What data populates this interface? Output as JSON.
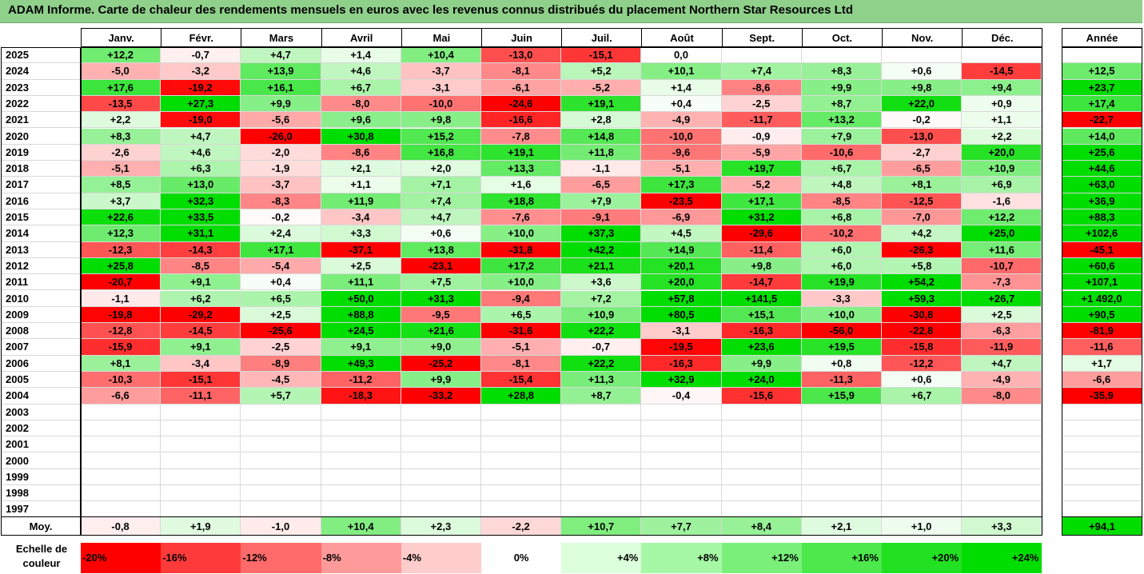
{
  "title": "ADAM Informe. Carte de chaleur des rendements mensuels en euros avec les revenus connus distribués du placement Northern Star Resources Ltd",
  "chart_data": {
    "type": "heatmap",
    "title": "ADAM Informe. Carte de chaleur des rendements mensuels en euros avec les revenus connus distribués du placement Northern Star Resources Ltd",
    "months": [
      "Janv.",
      "Févr.",
      "Mars",
      "Avril",
      "Mai",
      "Juin",
      "Juil.",
      "Août",
      "Sept.",
      "Oct.",
      "Nov.",
      "Déc."
    ],
    "annual_header": "Année",
    "rows": [
      {
        "year": "2025",
        "months": [
          "+12,2",
          "-0,7",
          "+4,7",
          "+1,4",
          "+10,4",
          "-13,0",
          "-15,1",
          "0,0",
          "",
          "",
          "",
          ""
        ],
        "annual": ""
      },
      {
        "year": "2024",
        "months": [
          "-5,0",
          "-3,2",
          "+13,9",
          "+4,6",
          "-3,7",
          "-8,1",
          "+5,2",
          "+10,1",
          "+7,4",
          "+8,3",
          "+0,6",
          "-14,5"
        ],
        "annual": "+12,5"
      },
      {
        "year": "2023",
        "months": [
          "+17,6",
          "-19,2",
          "+16,1",
          "+6,7",
          "-3,1",
          "-6,1",
          "-5,2",
          "+1,4",
          "-8,6",
          "+9,9",
          "+9,8",
          "+9,4"
        ],
        "annual": "+23,7"
      },
      {
        "year": "2022",
        "months": [
          "-13,5",
          "+27,3",
          "+9,9",
          "-8,0",
          "-10,0",
          "-24,6",
          "+19,1",
          "+0,4",
          "-2,5",
          "+8,7",
          "+22,0",
          "+0,9"
        ],
        "annual": "+17,4"
      },
      {
        "year": "2021",
        "months": [
          "+2,2",
          "-19,0",
          "-5,6",
          "+9,6",
          "+9,8",
          "-16,6",
          "+2,8",
          "-4,9",
          "-11,7",
          "+13,2",
          "-0,2",
          "+1,1"
        ],
        "annual": "-22,7"
      },
      {
        "year": "2020",
        "months": [
          "+8,3",
          "+4,7",
          "-26,0",
          "+30,8",
          "+15,2",
          "-7,8",
          "+14,8",
          "-10,0",
          "-0,9",
          "+7,9",
          "-13,0",
          "+2,2"
        ],
        "annual": "+14,0"
      },
      {
        "year": "2019",
        "months": [
          "-2,6",
          "+4,6",
          "-2,0",
          "-8,6",
          "+16,8",
          "+19,1",
          "+11,8",
          "-9,6",
          "-5,9",
          "-10,6",
          "-2,7",
          "+20,0"
        ],
        "annual": "+25,6"
      },
      {
        "year": "2018",
        "months": [
          "-5,1",
          "+6,3",
          "-1,9",
          "+2,1",
          "+2,0",
          "+13,3",
          "-1,1",
          "-5,1",
          "+19,7",
          "+6,7",
          "-6,5",
          "+10,9"
        ],
        "annual": "+44,6"
      },
      {
        "year": "2017",
        "months": [
          "+8,5",
          "+13,0",
          "-3,7",
          "+1,1",
          "+7,1",
          "+1,6",
          "-6,5",
          "+17,3",
          "-5,2",
          "+4,8",
          "+8,1",
          "+6,9"
        ],
        "annual": "+63,0"
      },
      {
        "year": "2016",
        "months": [
          "+3,7",
          "+32,3",
          "-8,3",
          "+11,9",
          "+7,4",
          "+18,8",
          "+7,9",
          "-23,5",
          "+17,1",
          "-8,5",
          "-12,5",
          "-1,6"
        ],
        "annual": "+36,9"
      },
      {
        "year": "2015",
        "months": [
          "+22,6",
          "+33,5",
          "-0,2",
          "-3,4",
          "+4,7",
          "-7,6",
          "-9,1",
          "-6,9",
          "+31,2",
          "+6,8",
          "-7,0",
          "+12,2"
        ],
        "annual": "+88,3"
      },
      {
        "year": "2014",
        "months": [
          "+12,3",
          "+31,1",
          "+2,4",
          "+3,3",
          "+0,6",
          "+10,0",
          "+37,3",
          "+4,5",
          "-29,6",
          "-10,2",
          "+4,2",
          "+25,0"
        ],
        "annual": "+102,6"
      },
      {
        "year": "2013",
        "months": [
          "-12,3",
          "-14,3",
          "+17,1",
          "-37,1",
          "+13,8",
          "-31,8",
          "+42,2",
          "+14,9",
          "-11,4",
          "+6,0",
          "-26,3",
          "+11,6"
        ],
        "annual": "-45,1"
      },
      {
        "year": "2012",
        "months": [
          "+25,8",
          "-8,5",
          "-5,4",
          "+2,5",
          "-23,1",
          "+17,2",
          "+21,1",
          "+20,1",
          "+9,8",
          "+6,0",
          "+5,8",
          "-10,7"
        ],
        "annual": "+60,6"
      },
      {
        "year": "2011",
        "months": [
          "-20,7",
          "+9,1",
          "+0,4",
          "+11,1",
          "+7,5",
          "+10,0",
          "+3,6",
          "+20,0",
          "-14,7",
          "+19,9",
          "+54,2",
          "-7,3"
        ],
        "annual": "+107,1"
      },
      {
        "year": "2010",
        "months": [
          "-1,1",
          "+6,2",
          "+6,5",
          "+50,0",
          "+31,3",
          "-9,4",
          "+7,2",
          "+57,8",
          "+141,5",
          "-3,3",
          "+59,3",
          "+26,7"
        ],
        "annual": "+1 492,0"
      },
      {
        "year": "2009",
        "months": [
          "-19,8",
          "-29,2",
          "+2,5",
          "+88,8",
          "-9,5",
          "+6,5",
          "+10,9",
          "+80,5",
          "+15,1",
          "+10,0",
          "-30,8",
          "+2,5"
        ],
        "annual": "+90,5"
      },
      {
        "year": "2008",
        "months": [
          "-12,8",
          "-14,5",
          "-25,6",
          "+24,5",
          "+21,6",
          "-31,6",
          "+22,2",
          "-3,1",
          "-16,3",
          "-56,0",
          "-22,8",
          "-6,3"
        ],
        "annual": "-81,9"
      },
      {
        "year": "2007",
        "months": [
          "-15,9",
          "+9,1",
          "-2,5",
          "+9,1",
          "+9,0",
          "-5,1",
          "-0,7",
          "-19,5",
          "+23,6",
          "+19,5",
          "-15,8",
          "-11,9"
        ],
        "annual": "-11,6"
      },
      {
        "year": "2006",
        "months": [
          "+8,1",
          "-3,4",
          "-8,9",
          "+49,3",
          "-25,2",
          "-8,1",
          "+22,2",
          "-16,3",
          "+9,9",
          "+0,8",
          "-12,2",
          "+4,7"
        ],
        "annual": "+1,7"
      },
      {
        "year": "2005",
        "months": [
          "-10,3",
          "-15,1",
          "-4,5",
          "-11,2",
          "+9,9",
          "-15,4",
          "+11,3",
          "+32,9",
          "+24,0",
          "-11,3",
          "+0,6",
          "-4,9"
        ],
        "annual": "-6,6"
      },
      {
        "year": "2004",
        "months": [
          "-6,6",
          "-11,1",
          "+5,7",
          "-18,3",
          "-33,2",
          "+28,8",
          "+8,7",
          "-0,4",
          "-15,6",
          "+15,9",
          "+6,7",
          "-8,0"
        ],
        "annual": "-35,9"
      },
      {
        "year": "2003",
        "months": [
          "",
          "",
          "",
          "",
          "",
          "",
          "",
          "",
          "",
          "",
          "",
          ""
        ],
        "annual": ""
      },
      {
        "year": "2002",
        "months": [
          "",
          "",
          "",
          "",
          "",
          "",
          "",
          "",
          "",
          "",
          "",
          ""
        ],
        "annual": ""
      },
      {
        "year": "2001",
        "months": [
          "",
          "",
          "",
          "",
          "",
          "",
          "",
          "",
          "",
          "",
          "",
          ""
        ],
        "annual": ""
      },
      {
        "year": "2000",
        "months": [
          "",
          "",
          "",
          "",
          "",
          "",
          "",
          "",
          "",
          "",
          "",
          ""
        ],
        "annual": ""
      },
      {
        "year": "1999",
        "months": [
          "",
          "",
          "",
          "",
          "",
          "",
          "",
          "",
          "",
          "",
          "",
          ""
        ],
        "annual": ""
      },
      {
        "year": "1998",
        "months": [
          "",
          "",
          "",
          "",
          "",
          "",
          "",
          "",
          "",
          "",
          "",
          ""
        ],
        "annual": ""
      },
      {
        "year": "1997",
        "months": [
          "",
          "",
          "",
          "",
          "",
          "",
          "",
          "",
          "",
          "",
          "",
          ""
        ],
        "annual": ""
      }
    ],
    "average": {
      "label": "Moy.",
      "months": [
        "-0,8",
        "+1,9",
        "-1,0",
        "+10,4",
        "+2,3",
        "-2,2",
        "+10,7",
        "+7,7",
        "+8,4",
        "+2,1",
        "+1,0",
        "+3,3"
      ],
      "annual": "+94,1"
    },
    "color_scale": {
      "label": "Echelle de couleur",
      "steps": [
        {
          "label": "-20%",
          "color": "#ff0000"
        },
        {
          "label": "-16%",
          "color": "#ff3a3a"
        },
        {
          "label": "-12%",
          "color": "#ff6a6a"
        },
        {
          "label": "-8%",
          "color": "#ff9a9a"
        },
        {
          "label": "-4%",
          "color": "#ffcccc"
        },
        {
          "label": "0%",
          "color": "#ffffff"
        },
        {
          "label": "+4%",
          "color": "#dcffdc"
        },
        {
          "label": "+8%",
          "color": "#a6f8a6"
        },
        {
          "label": "+12%",
          "color": "#7af07a"
        },
        {
          "label": "+16%",
          "color": "#4ce84c"
        },
        {
          "label": "+20%",
          "color": "#22e022"
        },
        {
          "label": "+24%",
          "color": "#00dd00"
        }
      ]
    }
  }
}
